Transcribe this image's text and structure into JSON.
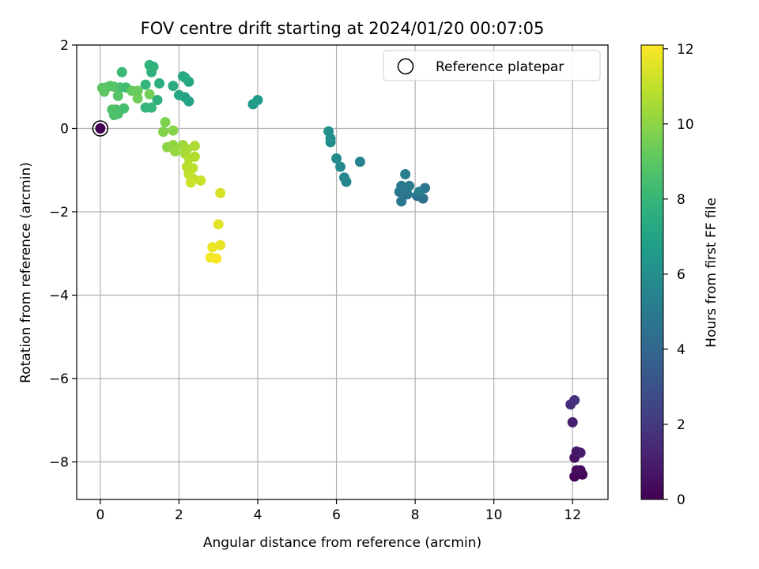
{
  "chart_data": {
    "type": "scatter",
    "title": "FOV centre drift starting at 2024/01/20 00:07:05",
    "xlabel": "Angular distance from reference (arcmin)",
    "ylabel": "Rotation from reference (arcmin)",
    "xlim": [
      -0.6,
      12.9
    ],
    "ylim": [
      -8.9,
      2.0
    ],
    "xticks": [
      0,
      2,
      4,
      6,
      8,
      10,
      12
    ],
    "yticks": [
      2,
      0,
      -2,
      -4,
      -6,
      -8
    ],
    "xtick_labels": [
      "0",
      "2",
      "4",
      "6",
      "8",
      "10",
      "12"
    ],
    "ytick_labels": [
      "2",
      "0",
      "−2",
      "−4",
      "−6",
      "−8"
    ],
    "grid": true,
    "legend": {
      "location": "upper right",
      "entries": [
        "Reference platepar"
      ]
    },
    "colorbar": {
      "label": "Hours from first FF file",
      "range": [
        0,
        12.1
      ],
      "ticks": [
        0,
        2,
        4,
        6,
        8,
        10,
        12
      ],
      "tick_labels": [
        "0",
        "2",
        "4",
        "6",
        "8",
        "10",
        "12"
      ],
      "colormap": "viridis"
    },
    "reference_point": {
      "x": 0,
      "y": 0,
      "hours": 0
    },
    "points": [
      {
        "x": 0.0,
        "y": 0.0,
        "hours": 0.0
      },
      {
        "x": 12.05,
        "y": -8.35,
        "hours": 0.1
      },
      {
        "x": 12.25,
        "y": -8.3,
        "hours": 0.2
      },
      {
        "x": 12.2,
        "y": -8.2,
        "hours": 0.3
      },
      {
        "x": 12.1,
        "y": -8.2,
        "hours": 0.4
      },
      {
        "x": 12.05,
        "y": -7.9,
        "hours": 0.6
      },
      {
        "x": 12.1,
        "y": -7.75,
        "hours": 0.8
      },
      {
        "x": 12.2,
        "y": -7.78,
        "hours": 0.9
      },
      {
        "x": 12.0,
        "y": -7.05,
        "hours": 1.1
      },
      {
        "x": 11.95,
        "y": -6.62,
        "hours": 1.5
      },
      {
        "x": 12.05,
        "y": -6.52,
        "hours": 1.7
      },
      {
        "x": 8.2,
        "y": -1.68,
        "hours": 4.4
      },
      {
        "x": 8.05,
        "y": -1.62,
        "hours": 4.5
      },
      {
        "x": 8.25,
        "y": -1.43,
        "hours": 4.6
      },
      {
        "x": 7.8,
        "y": -1.58,
        "hours": 4.7
      },
      {
        "x": 7.65,
        "y": -1.75,
        "hours": 4.8
      },
      {
        "x": 7.6,
        "y": -1.52,
        "hours": 4.8
      },
      {
        "x": 7.65,
        "y": -1.38,
        "hours": 4.9
      },
      {
        "x": 7.85,
        "y": -1.38,
        "hours": 5.0
      },
      {
        "x": 7.75,
        "y": -1.1,
        "hours": 5.1
      },
      {
        "x": 8.1,
        "y": -1.52,
        "hours": 5.1
      },
      {
        "x": 6.6,
        "y": -0.8,
        "hours": 5.4
      },
      {
        "x": 6.25,
        "y": -1.28,
        "hours": 5.5
      },
      {
        "x": 6.2,
        "y": -1.18,
        "hours": 5.6
      },
      {
        "x": 6.1,
        "y": -0.92,
        "hours": 5.7
      },
      {
        "x": 6.0,
        "y": -0.72,
        "hours": 5.8
      },
      {
        "x": 5.85,
        "y": -0.33,
        "hours": 5.9
      },
      {
        "x": 5.85,
        "y": -0.24,
        "hours": 6.0
      },
      {
        "x": 5.8,
        "y": -0.07,
        "hours": 6.1
      },
      {
        "x": 4.0,
        "y": 0.68,
        "hours": 6.5
      },
      {
        "x": 3.88,
        "y": 0.58,
        "hours": 6.6
      },
      {
        "x": 2.25,
        "y": 0.65,
        "hours": 7.0
      },
      {
        "x": 2.15,
        "y": 0.75,
        "hours": 7.1
      },
      {
        "x": 2.0,
        "y": 0.8,
        "hours": 7.2
      },
      {
        "x": 2.25,
        "y": 1.12,
        "hours": 7.2
      },
      {
        "x": 2.1,
        "y": 1.25,
        "hours": 7.3
      },
      {
        "x": 2.15,
        "y": 1.22,
        "hours": 7.3
      },
      {
        "x": 1.85,
        "y": 1.02,
        "hours": 7.5
      },
      {
        "x": 1.5,
        "y": 1.08,
        "hours": 7.6
      },
      {
        "x": 1.45,
        "y": 0.68,
        "hours": 7.7
      },
      {
        "x": 1.3,
        "y": 1.35,
        "hours": 7.7
      },
      {
        "x": 1.35,
        "y": 1.48,
        "hours": 7.8
      },
      {
        "x": 1.25,
        "y": 1.52,
        "hours": 7.8
      },
      {
        "x": 1.15,
        "y": 1.05,
        "hours": 7.9
      },
      {
        "x": 1.15,
        "y": 0.5,
        "hours": 8.0
      },
      {
        "x": 1.3,
        "y": 0.5,
        "hours": 8.0
      },
      {
        "x": 0.55,
        "y": 1.35,
        "hours": 8.2
      },
      {
        "x": 0.65,
        "y": 0.98,
        "hours": 8.3
      },
      {
        "x": 0.5,
        "y": 0.98,
        "hours": 8.4
      },
      {
        "x": 0.6,
        "y": 0.48,
        "hours": 8.5
      },
      {
        "x": 0.45,
        "y": 0.35,
        "hours": 8.6
      },
      {
        "x": 0.4,
        "y": 0.45,
        "hours": 8.6
      },
      {
        "x": 0.3,
        "y": 0.45,
        "hours": 8.7
      },
      {
        "x": 0.35,
        "y": 0.32,
        "hours": 8.7
      },
      {
        "x": 0.45,
        "y": 0.78,
        "hours": 8.8
      },
      {
        "x": 0.35,
        "y": 1.0,
        "hours": 8.8
      },
      {
        "x": 0.25,
        "y": 1.02,
        "hours": 8.9
      },
      {
        "x": 0.15,
        "y": 0.98,
        "hours": 8.9
      },
      {
        "x": 0.05,
        "y": 0.97,
        "hours": 9.0
      },
      {
        "x": 0.1,
        "y": 0.88,
        "hours": 9.0
      },
      {
        "x": 0.8,
        "y": 0.9,
        "hours": 9.2
      },
      {
        "x": 0.95,
        "y": 0.9,
        "hours": 9.3
      },
      {
        "x": 0.95,
        "y": 0.72,
        "hours": 9.4
      },
      {
        "x": 1.25,
        "y": 0.82,
        "hours": 9.5
      },
      {
        "x": 1.65,
        "y": 0.15,
        "hours": 9.7
      },
      {
        "x": 1.6,
        "y": -0.08,
        "hours": 9.8
      },
      {
        "x": 1.85,
        "y": -0.05,
        "hours": 9.9
      },
      {
        "x": 1.7,
        "y": -0.45,
        "hours": 10.0
      },
      {
        "x": 1.85,
        "y": -0.4,
        "hours": 10.1
      },
      {
        "x": 1.9,
        "y": -0.55,
        "hours": 10.2
      },
      {
        "x": 2.1,
        "y": -0.4,
        "hours": 10.3
      },
      {
        "x": 2.15,
        "y": -0.6,
        "hours": 10.4
      },
      {
        "x": 2.2,
        "y": -0.5,
        "hours": 10.5
      },
      {
        "x": 2.4,
        "y": -0.42,
        "hours": 10.6
      },
      {
        "x": 2.4,
        "y": -0.68,
        "hours": 10.7
      },
      {
        "x": 2.25,
        "y": -0.72,
        "hours": 10.7
      },
      {
        "x": 2.2,
        "y": -0.92,
        "hours": 10.8
      },
      {
        "x": 2.35,
        "y": -0.95,
        "hours": 10.9
      },
      {
        "x": 2.25,
        "y": -1.1,
        "hours": 11.0
      },
      {
        "x": 2.35,
        "y": -1.2,
        "hours": 11.0
      },
      {
        "x": 2.55,
        "y": -1.25,
        "hours": 11.1
      },
      {
        "x": 2.3,
        "y": -1.3,
        "hours": 11.2
      },
      {
        "x": 3.05,
        "y": -1.55,
        "hours": 11.4
      },
      {
        "x": 3.0,
        "y": -2.3,
        "hours": 11.6
      },
      {
        "x": 3.05,
        "y": -2.8,
        "hours": 11.7
      },
      {
        "x": 2.85,
        "y": -2.85,
        "hours": 11.8
      },
      {
        "x": 2.8,
        "y": -3.1,
        "hours": 11.9
      },
      {
        "x": 2.95,
        "y": -3.12,
        "hours": 12.0
      }
    ]
  }
}
